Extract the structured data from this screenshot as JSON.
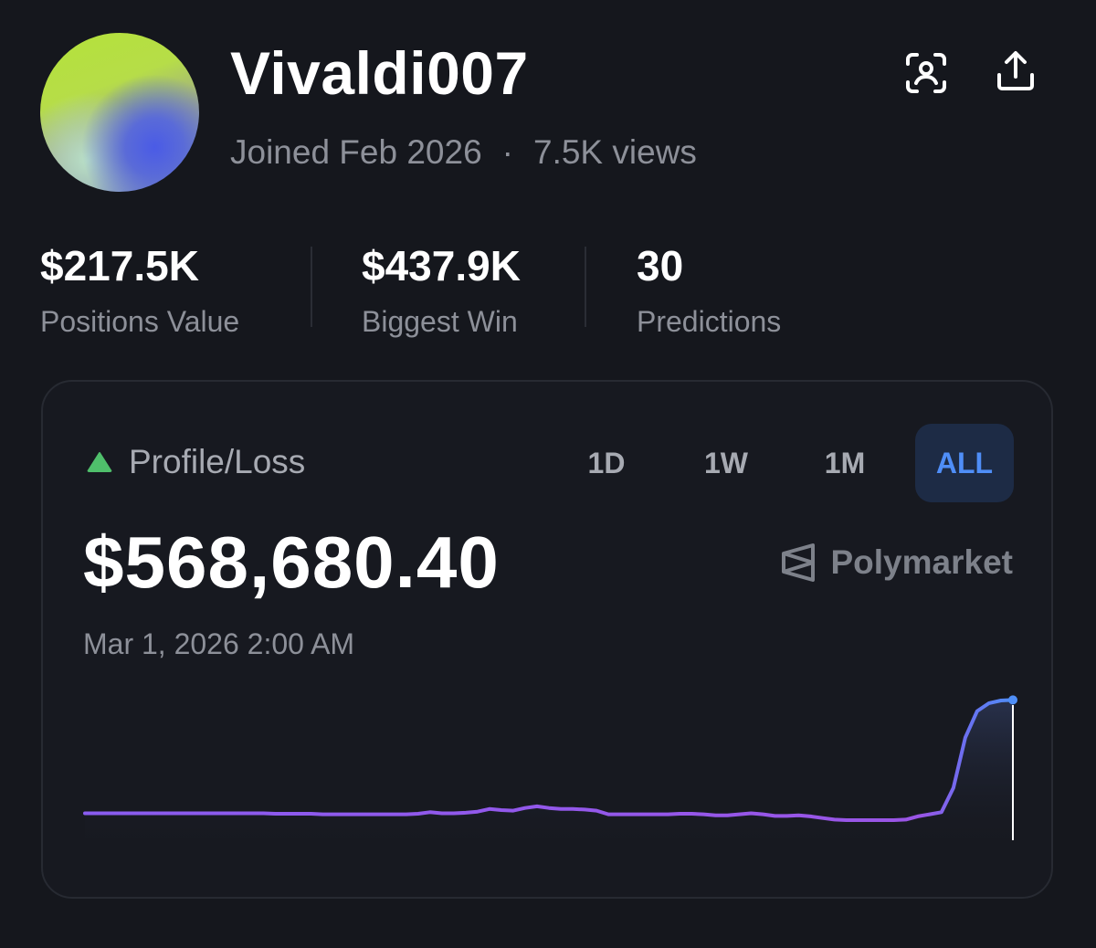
{
  "profile": {
    "username": "Vivaldi007",
    "joined": "Joined Feb 2026",
    "separator": "·",
    "views": "7.5K views"
  },
  "header_icons": {
    "scan": "profile-scan-icon",
    "share": "share-upload-icon"
  },
  "stats": [
    {
      "value": "$217.5K",
      "label": "Positions Value"
    },
    {
      "value": "$437.9K",
      "label": "Biggest Win"
    },
    {
      "value": "30",
      "label": "Predictions"
    }
  ],
  "card": {
    "title": "Profile/Loss",
    "ranges": [
      "1D",
      "1W",
      "1M",
      "ALL"
    ],
    "active_range": "ALL",
    "value": "$568,680.40",
    "date": "Mar 1, 2026 2:00 AM",
    "brand": "Polymarket",
    "colors": {
      "up_indicator": "#4fbf6b",
      "line_start": "#8a5cf0",
      "line_end": "#4f8ef7",
      "active_tab_text": "#4f8ef7"
    }
  },
  "chart_data": {
    "type": "line",
    "values": [
      0.12,
      0.12,
      0.12,
      0.12,
      0.12,
      0.12,
      0.12,
      0.12,
      0.12,
      0.12,
      0.12,
      0.12,
      0.12,
      0.12,
      0.12,
      0.12,
      0.11,
      0.11,
      0.11,
      0.11,
      0.1,
      0.1,
      0.1,
      0.1,
      0.1,
      0.1,
      0.1,
      0.1,
      0.11,
      0.14,
      0.12,
      0.12,
      0.13,
      0.15,
      0.2,
      0.18,
      0.17,
      0.22,
      0.25,
      0.22,
      0.2,
      0.2,
      0.19,
      0.17,
      0.1,
      0.1,
      0.1,
      0.1,
      0.1,
      0.1,
      0.11,
      0.11,
      0.1,
      0.08,
      0.08,
      0.1,
      0.12,
      0.1,
      0.07,
      0.07,
      0.08,
      0.06,
      0.03,
      0.0,
      -0.01,
      -0.01,
      -0.01,
      -0.01,
      -0.01,
      0.0,
      0.06,
      0.1,
      0.14,
      0.6,
      1.55,
      2.05,
      2.2,
      2.25,
      2.26
    ]
  }
}
